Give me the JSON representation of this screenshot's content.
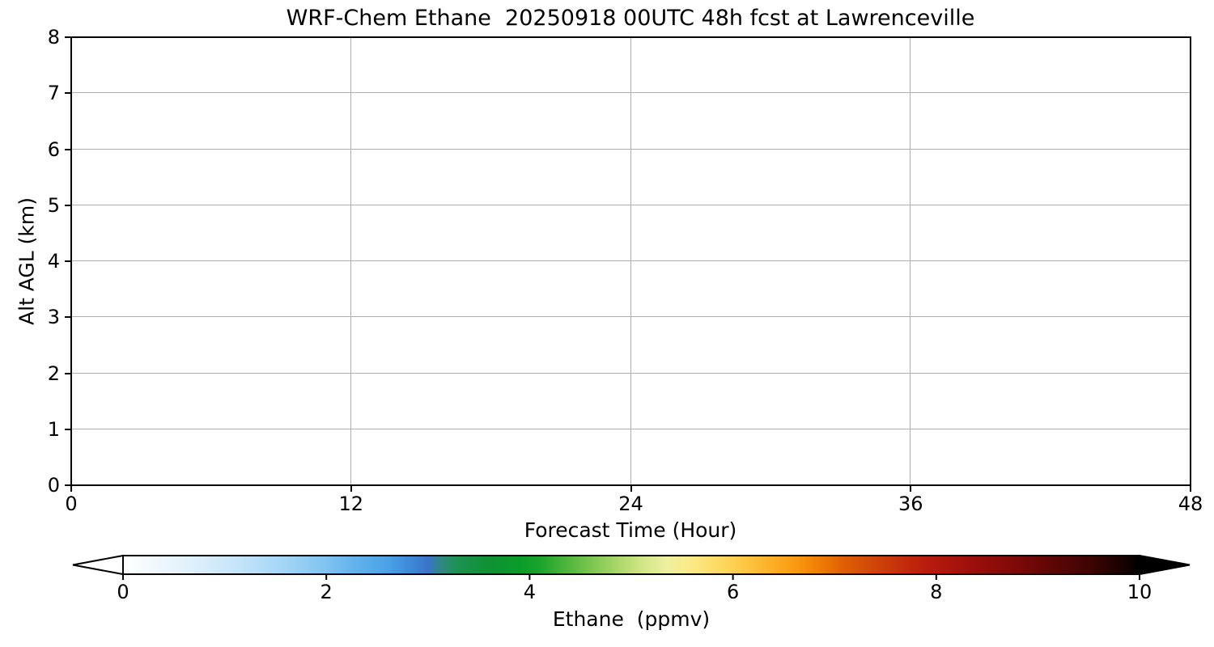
{
  "chart_data": {
    "type": "heatmap",
    "title": "WRF-Chem Ethane  20250918 00UTC 48h fcst at Lawrenceville",
    "xlabel": "Forecast Time (Hour)",
    "ylabel": "Alt AGL (km)",
    "xlim": [
      0,
      48
    ],
    "ylim": [
      0,
      8
    ],
    "xticks": [
      0,
      12,
      24,
      36,
      48
    ],
    "yticks": [
      0,
      1,
      2,
      3,
      4,
      5,
      6,
      7,
      8
    ],
    "grid": true,
    "grid_color": "#b0b0b0",
    "frame_color": "#000000",
    "background": "#ffffff",
    "values": [],
    "colorbar": {
      "label": "Ethane  (ppmv)",
      "range": [
        0,
        10
      ],
      "ticks": [
        0,
        2,
        4,
        6,
        8,
        10
      ],
      "extend": "both",
      "under_color": "#ffffff",
      "over_color": "#000000",
      "colormap_stops": [
        {
          "value": 0.0,
          "color": "#ffffff"
        },
        {
          "value": 0.4,
          "color": "#edf6fd"
        },
        {
          "value": 0.8,
          "color": "#d9edfb"
        },
        {
          "value": 1.2,
          "color": "#c0e2f9"
        },
        {
          "value": 1.6,
          "color": "#a2d5f6"
        },
        {
          "value": 2.0,
          "color": "#7fc3f1"
        },
        {
          "value": 2.3,
          "color": "#61b1ec"
        },
        {
          "value": 2.6,
          "color": "#4ba2e6"
        },
        {
          "value": 2.8,
          "color": "#3f8cda"
        },
        {
          "value": 3.0,
          "color": "#3a74c8"
        },
        {
          "value": 3.15,
          "color": "#2e8a7a"
        },
        {
          "value": 3.3,
          "color": "#1d9150"
        },
        {
          "value": 3.6,
          "color": "#0f9134"
        },
        {
          "value": 3.9,
          "color": "#0a9c29"
        },
        {
          "value": 4.1,
          "color": "#1ba32d"
        },
        {
          "value": 4.35,
          "color": "#4cb43b"
        },
        {
          "value": 4.6,
          "color": "#7ac64f"
        },
        {
          "value": 4.85,
          "color": "#a8d668"
        },
        {
          "value": 5.1,
          "color": "#d0e586"
        },
        {
          "value": 5.35,
          "color": "#eef0a0"
        },
        {
          "value": 5.6,
          "color": "#fce985"
        },
        {
          "value": 5.85,
          "color": "#fdda64"
        },
        {
          "value": 6.1,
          "color": "#fdc845"
        },
        {
          "value": 6.35,
          "color": "#fcb22a"
        },
        {
          "value": 6.6,
          "color": "#fa9b12"
        },
        {
          "value": 6.85,
          "color": "#ef7d04"
        },
        {
          "value": 7.1,
          "color": "#de5e05"
        },
        {
          "value": 7.4,
          "color": "#d04509"
        },
        {
          "value": 7.65,
          "color": "#c52e0b"
        },
        {
          "value": 7.9,
          "color": "#b91c0d"
        },
        {
          "value": 8.3,
          "color": "#a0100c"
        },
        {
          "value": 8.7,
          "color": "#850a08"
        },
        {
          "value": 9.1,
          "color": "#620606"
        },
        {
          "value": 9.5,
          "color": "#3f0403"
        },
        {
          "value": 9.8,
          "color": "#1c0201"
        },
        {
          "value": 10.0,
          "color": "#000000"
        }
      ]
    }
  }
}
